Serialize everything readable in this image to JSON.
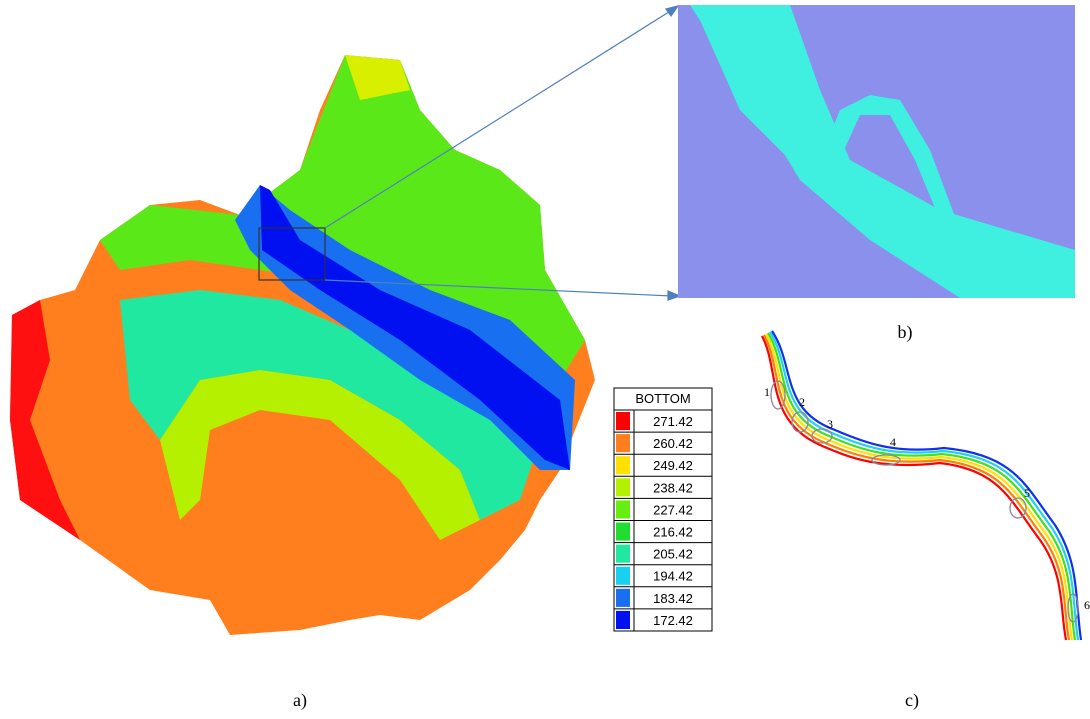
{
  "panels": {
    "a": "a)",
    "b": "b)",
    "c": "c)"
  },
  "legend": {
    "title": "BOTTOM",
    "entries": [
      {
        "label": "271.42",
        "color": "#ff0000"
      },
      {
        "label": "260.42",
        "color": "#ff7f1e"
      },
      {
        "label": "249.42",
        "color": "#ffe000"
      },
      {
        "label": "238.42",
        "color": "#b5f000"
      },
      {
        "label": "227.42",
        "color": "#66ee10"
      },
      {
        "label": "216.42",
        "color": "#20dd30"
      },
      {
        "label": "205.42",
        "color": "#20e8a0"
      },
      {
        "label": "194.42",
        "color": "#18d0f0"
      },
      {
        "label": "183.42",
        "color": "#1870f0"
      },
      {
        "label": "172.42",
        "color": "#0010f0"
      }
    ]
  },
  "river_sites": [
    "1",
    "2",
    "3",
    "4",
    "5",
    "6"
  ]
}
